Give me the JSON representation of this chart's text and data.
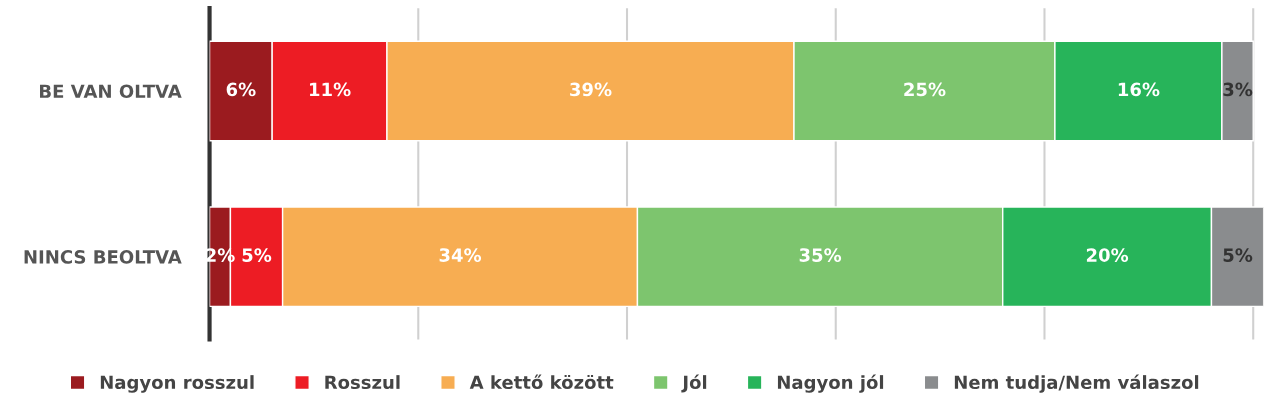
{
  "chart_data": {
    "type": "bar",
    "orientation": "horizontal",
    "stacked": true,
    "categories": [
      "BE VAN OLTVA",
      "NINCS BEOLTVA"
    ],
    "series": [
      {
        "name": "Nagyon rosszul",
        "color": "#9b1b1f",
        "values": [
          6,
          2
        ],
        "value_labels": [
          "6%",
          "2%"
        ]
      },
      {
        "name": "Rosszul",
        "color": "#ed1c24",
        "values": [
          11,
          5
        ],
        "value_labels": [
          "11%",
          "5%"
        ]
      },
      {
        "name": "A kettő között",
        "color": "#f7ad52",
        "values": [
          39,
          34
        ],
        "value_labels": [
          "39%",
          "34%"
        ]
      },
      {
        "name": "Jól",
        "color": "#7dc56e",
        "values": [
          25,
          35
        ],
        "value_labels": [
          "25%",
          "35%"
        ]
      },
      {
        "name": "Nagyon jól",
        "color": "#27b45a",
        "values": [
          16,
          20
        ],
        "value_labels": [
          "16%",
          "20%"
        ]
      },
      {
        "name": "Nem tudja/Nem válaszol",
        "color": "#8a8c8e",
        "values": [
          3,
          5
        ],
        "value_labels": [
          "3%",
          "5%"
        ]
      }
    ],
    "grid": "x",
    "legend": "bottom",
    "tick_labels": "y"
  }
}
